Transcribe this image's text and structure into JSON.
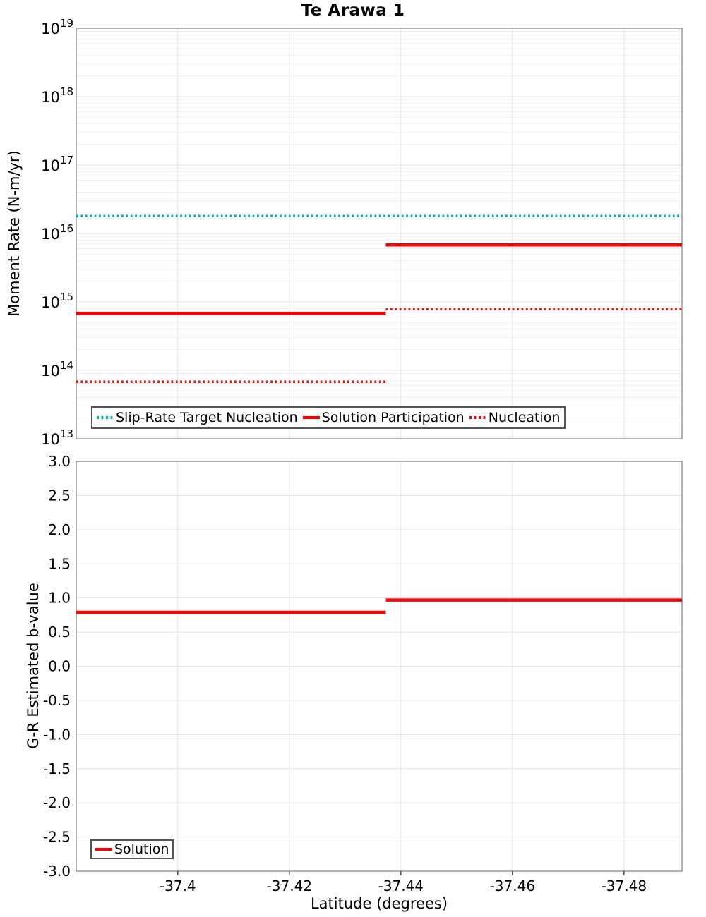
{
  "figure_title": "Te Arawa 1",
  "chart_data": [
    {
      "type": "line",
      "title": "Te Arawa 1",
      "xlabel": "",
      "ylabel": "Moment Rate (N-m/yr)",
      "yscale": "log",
      "ylim": [
        10000000000000.0,
        1e+19
      ],
      "xlim": [
        -37.3818,
        -37.4904
      ],
      "grid": true,
      "legend_position": "bottom-left",
      "show_xtick_labels": false,
      "xticks": [
        {
          "v": -37.4,
          "label": "-37.4"
        },
        {
          "v": -37.42,
          "label": "-37.42"
        },
        {
          "v": -37.44,
          "label": "-37.44"
        },
        {
          "v": -37.46,
          "label": "-37.46"
        },
        {
          "v": -37.48,
          "label": "-37.48"
        }
      ],
      "yticks": [
        {
          "v": 1e+19,
          "base": "10",
          "exp": "19"
        },
        {
          "v": 1e+18,
          "base": "10",
          "exp": "18"
        },
        {
          "v": 1e+17,
          "base": "10",
          "exp": "17"
        },
        {
          "v": 1e+16,
          "base": "10",
          "exp": "16"
        },
        {
          "v": 1000000000000000.0,
          "base": "10",
          "exp": "15"
        },
        {
          "v": 100000000000000.0,
          "base": "10",
          "exp": "14"
        },
        {
          "v": 10000000000000.0,
          "base": "10",
          "exp": "13"
        }
      ],
      "series": [
        {
          "name": "Slip-Rate Target Nucleation",
          "color": "#00B2BE",
          "style": "dotted",
          "segments": [
            [
              [
                -37.3818,
                1.8e+16
              ],
              [
                -37.4904,
                1.8e+16
              ]
            ]
          ]
        },
        {
          "name": "Solution Participation",
          "color": "#FF0000",
          "style": "solid",
          "segments": [
            [
              [
                -37.3818,
                680000000000000.0
              ],
              [
                -37.4373,
                680000000000000.0
              ]
            ],
            [
              [
                -37.4373,
                6800000000000000.0
              ],
              [
                -37.4904,
                6800000000000000.0
              ]
            ]
          ]
        },
        {
          "name": "Nucleation",
          "color": "#FF0000",
          "style": "dotted",
          "segments": [
            [
              [
                -37.3818,
                68000000000000.0
              ],
              [
                -37.4373,
                68000000000000.0
              ]
            ],
            [
              [
                -37.4373,
                780000000000000.0
              ],
              [
                -37.4904,
                780000000000000.0
              ]
            ]
          ]
        }
      ]
    },
    {
      "type": "line",
      "title": "",
      "xlabel": "Latitude (degrees)",
      "ylabel": "G-R Estimated b-value",
      "yscale": "linear",
      "ylim": [
        -3.0,
        3.0
      ],
      "xlim": [
        -37.3818,
        -37.4904
      ],
      "grid": true,
      "legend_position": "bottom-left",
      "show_xtick_labels": true,
      "xticks": [
        {
          "v": -37.4,
          "label": "-37.4"
        },
        {
          "v": -37.42,
          "label": "-37.42"
        },
        {
          "v": -37.44,
          "label": "-37.44"
        },
        {
          "v": -37.46,
          "label": "-37.46"
        },
        {
          "v": -37.48,
          "label": "-37.48"
        }
      ],
      "yticks": [
        {
          "v": 3.0,
          "label": "3.0"
        },
        {
          "v": 2.5,
          "label": "2.5"
        },
        {
          "v": 2.0,
          "label": "2.0"
        },
        {
          "v": 1.5,
          "label": "1.5"
        },
        {
          "v": 1.0,
          "label": "1.0"
        },
        {
          "v": 0.5,
          "label": "0.5"
        },
        {
          "v": 0.0,
          "label": "0.0"
        },
        {
          "v": -0.5,
          "label": "-0.5"
        },
        {
          "v": -1.0,
          "label": "-1.0"
        },
        {
          "v": -1.5,
          "label": "-1.5"
        },
        {
          "v": -2.0,
          "label": "-2.0"
        },
        {
          "v": -2.5,
          "label": "-2.5"
        },
        {
          "v": -3.0,
          "label": "-3.0"
        }
      ],
      "series": [
        {
          "name": "Solution",
          "color": "#FF0000",
          "style": "solid",
          "segments": [
            [
              [
                -37.3818,
                0.79
              ],
              [
                -37.4373,
                0.79
              ]
            ],
            [
              [
                -37.4373,
                0.97
              ],
              [
                -37.4904,
                0.97
              ]
            ]
          ]
        }
      ]
    }
  ],
  "colors": {
    "slip_rate_target": "#00B2BE",
    "solution": "#FF0000",
    "grid_major": "#E3E3E3",
    "grid_minor": "#F1F1F1",
    "frame": "#9A9A9A"
  }
}
